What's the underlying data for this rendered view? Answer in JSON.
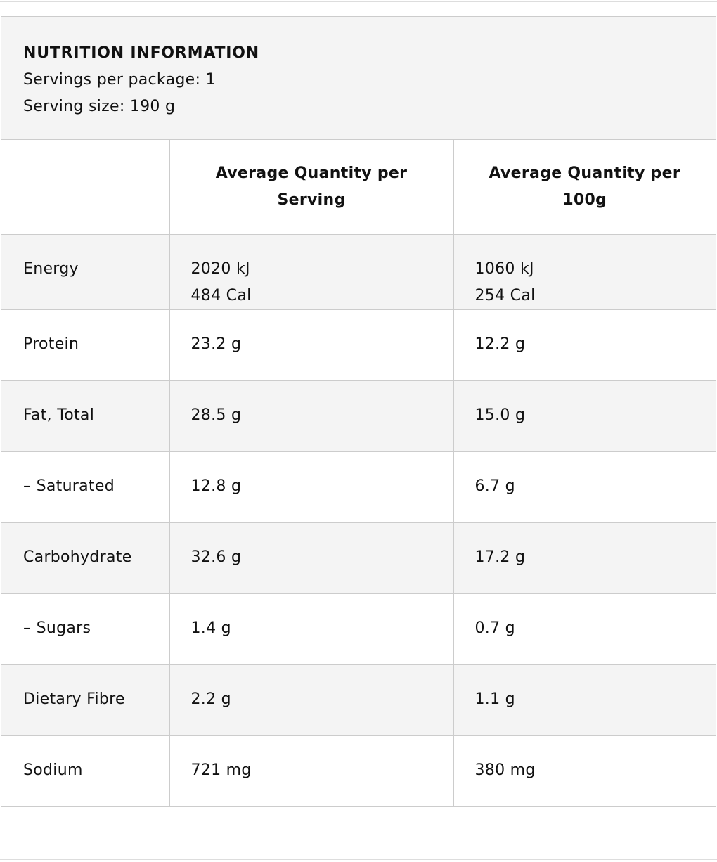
{
  "header": {
    "title": "NUTRITION INFORMATION",
    "servings": "Servings per package: 1",
    "serving_size": "Serving size: 190 g"
  },
  "table": {
    "columns": [
      "",
      "Average Quantity per Serving",
      "Average Quantity per 100g"
    ],
    "rows": [
      [
        "Energy",
        [
          "2020 kJ",
          "484 Cal"
        ],
        [
          "1060 kJ",
          "254 Cal"
        ]
      ],
      [
        "Protein",
        "23.2 g",
        "12.2 g"
      ],
      [
        "Fat, Total",
        "28.5 g",
        "15.0 g"
      ],
      [
        "– Saturated",
        "12.8 g",
        "6.7 g"
      ],
      [
        "Carbohydrate",
        "32.6 g",
        "17.2 g"
      ],
      [
        "– Sugars",
        "1.4 g",
        "0.7 g"
      ],
      [
        "Dietary Fibre",
        "2.2 g",
        "1.1 g"
      ],
      [
        "Sodium",
        "721 mg",
        "380 mg"
      ]
    ]
  }
}
